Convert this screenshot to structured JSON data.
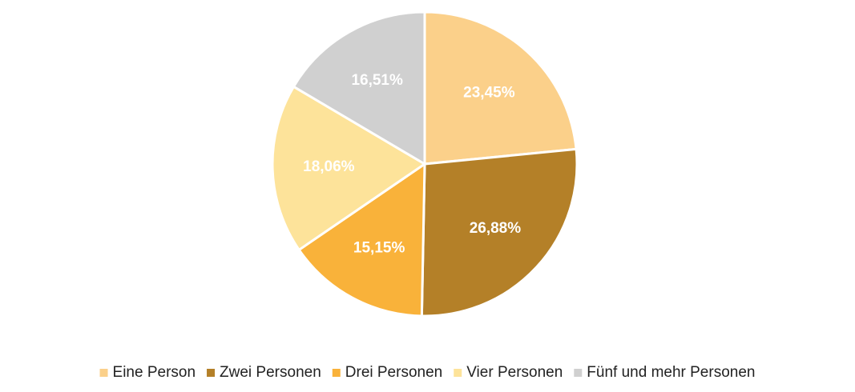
{
  "chart_data": {
    "type": "pie",
    "categories": [
      "Eine Person",
      "Zwei Personen",
      "Drei Personen",
      "Vier Personen",
      "Fünf und mehr Personen"
    ],
    "values": [
      23.45,
      26.88,
      15.15,
      18.06,
      16.51
    ],
    "value_labels": [
      "23,45%",
      "26,88%",
      "15,15%",
      "18,06%",
      "16,51%"
    ],
    "colors": [
      "#fbd08a",
      "#b48028",
      "#f9b23a",
      "#fde39a",
      "#d0d0d0"
    ],
    "legend": "bottom"
  }
}
